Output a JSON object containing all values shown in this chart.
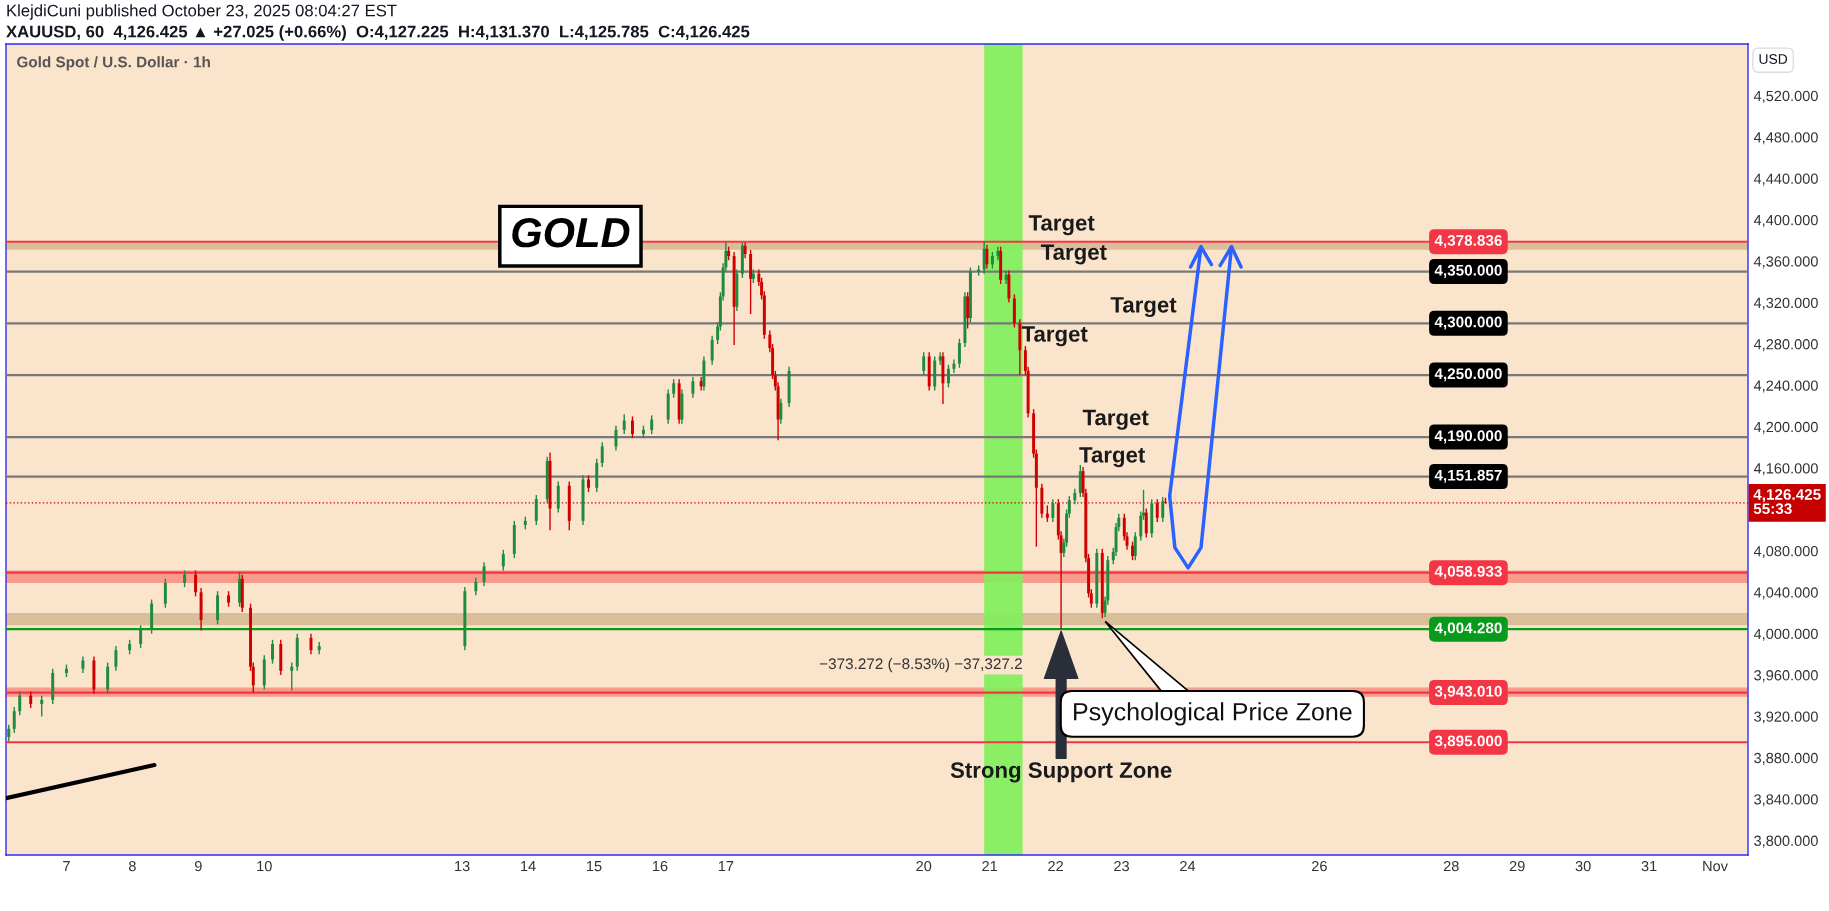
{
  "chart_data": {
    "type": "candlestick",
    "title": "Gold Spot / U.S. Dollar · 1h",
    "subtitle": "XAUUSD, 60  4,126.425 ▲ +27.025 (+0.66%)  O:4,127.225  H:4,131.370  L:4,125.785  C:4,126.425",
    "ylabel": "USD",
    "x": [
      "2025-10-06T03:00",
      "2025-10-06T05:00",
      "2025-10-06T07:00",
      "2025-10-06T11:00",
      "2025-10-06T15:00",
      "2025-10-06T19:00",
      "2025-10-07T00:00",
      "2025-10-07T06:00",
      "2025-10-07T10:00",
      "2025-10-07T15:00",
      "2025-10-07T18:00",
      "2025-10-07T23:00",
      "2025-10-08T03:00",
      "2025-10-08T07:00",
      "2025-10-08T12:00",
      "2025-10-08T19:00",
      "2025-10-08T23:00",
      "2025-10-09T01:00",
      "2025-10-09T07:00",
      "2025-10-09T11:00",
      "2025-10-09T15:00",
      "2025-10-09T16:00",
      "2025-10-09T19:00",
      "2025-10-09T20:00",
      "2025-10-10T00:00",
      "2025-10-10T03:00",
      "2025-10-10T06:00",
      "2025-10-10T10:00",
      "2025-10-10T12:00",
      "2025-10-10T17:00",
      "2025-10-10T20:00",
      "2025-10-13T01:00",
      "2025-10-13T05:00",
      "2025-10-13T08:00",
      "2025-10-13T15:00",
      "2025-10-13T19:00",
      "2025-10-13T23:00",
      "2025-10-14T03:00",
      "2025-10-14T07:00",
      "2025-10-14T08:00",
      "2025-10-14T11:00",
      "2025-10-14T15:00",
      "2025-10-14T20:00",
      "2025-10-14T22:00",
      "2025-10-15T01:00",
      "2025-10-15T03:00",
      "2025-10-15T08:00",
      "2025-10-15T11:00",
      "2025-10-15T14:00",
      "2025-10-15T18:00",
      "2025-10-15T21:00",
      "2025-10-16T03:00",
      "2025-10-16T05:00",
      "2025-10-16T07:00",
      "2025-10-16T08:00",
      "2025-10-16T12:00",
      "2025-10-16T15:00",
      "2025-10-16T16:00",
      "2025-10-16T19:00",
      "2025-10-16T21:00",
      "2025-10-16T22:00",
      "2025-10-16T23:00",
      "2025-10-17T00:00",
      "2025-10-17T01:00",
      "2025-10-17T03:00",
      "2025-10-17T04:00",
      "2025-10-17T06:00",
      "2025-10-17T07:00",
      "2025-10-17T09:00",
      "2025-10-17T10:00",
      "2025-10-17T12:00",
      "2025-10-17T13:00",
      "2025-10-17T14:00",
      "2025-10-17T16:00",
      "2025-10-17T17:00",
      "2025-10-17T18:00",
      "2025-10-17T19:00",
      "2025-10-17T20:00",
      "2025-10-17T23:00",
      "2025-10-20T00:00",
      "2025-10-20T02:00",
      "2025-10-20T04:00",
      "2025-10-20T06:00",
      "2025-10-20T07:00",
      "2025-10-20T09:00",
      "2025-10-20T11:00",
      "2025-10-20T13:00",
      "2025-10-20T15:00",
      "2025-10-20T16:00",
      "2025-10-20T17:00",
      "2025-10-20T20:00",
      "2025-10-20T22:00",
      "2025-10-20T23:00",
      "2025-10-21T01:00",
      "2025-10-21T03:00",
      "2025-10-21T04:00",
      "2025-10-21T06:00",
      "2025-10-21T07:00",
      "2025-10-21T09:00",
      "2025-10-21T11:00",
      "2025-10-21T13:00",
      "2025-10-21T14:00",
      "2025-10-21T16:00",
      "2025-10-21T17:00",
      "2025-10-21T19:00",
      "2025-10-21T21:00",
      "2025-10-21T23:00",
      "2025-10-22T01:00",
      "2025-10-22T02:00",
      "2025-10-22T03:00",
      "2025-10-22T04:00",
      "2025-10-22T05:00",
      "2025-10-22T07:00",
      "2025-10-22T09:00",
      "2025-10-22T10:00",
      "2025-10-22T11:00",
      "2025-10-22T12:00",
      "2025-10-22T13:00",
      "2025-10-22T15:00",
      "2025-10-22T17:00",
      "2025-10-22T18:00",
      "2025-10-22T19:00",
      "2025-10-22T21:00",
      "2025-10-22T22:00",
      "2025-10-22T23:00",
      "2025-10-23T01:00",
      "2025-10-23T02:00",
      "2025-10-23T04:00",
      "2025-10-23T05:00",
      "2025-10-23T07:00",
      "2025-10-23T08:00",
      "2025-10-23T09:00",
      "2025-10-23T11:00",
      "2025-10-23T13:00",
      "2025-10-23T15:00",
      "2025-10-23T16:00"
    ],
    "ohlc": [
      [
        3900,
        3912,
        3896,
        3908
      ],
      [
        3908,
        3929,
        3904,
        3925
      ],
      [
        3925,
        3944,
        3921,
        3940
      ],
      [
        3940,
        3944,
        3928,
        3932
      ],
      [
        3932,
        3940,
        3920,
        3936
      ],
      [
        3936,
        3966,
        3932,
        3962
      ],
      [
        3962,
        3970,
        3958,
        3966
      ],
      [
        3966,
        3978,
        3962,
        3974
      ],
      [
        3974,
        3978,
        3942,
        3946
      ],
      [
        3946,
        3972,
        3942,
        3968
      ],
      [
        3968,
        3988,
        3964,
        3984
      ],
      [
        3984,
        3994,
        3980,
        3990
      ],
      [
        3990,
        4008,
        3986,
        4004
      ],
      [
        4004,
        4033,
        4000,
        4029
      ],
      [
        4029,
        4053,
        4025,
        4049
      ],
      [
        4049,
        4061,
        4045,
        4057
      ],
      [
        4057,
        4061,
        4036,
        4040
      ],
      [
        4040,
        4044,
        4003,
        4013
      ],
      [
        4013,
        4041,
        4009,
        4037
      ],
      [
        4037,
        4041,
        4026,
        4030
      ],
      [
        4030,
        4060,
        4026,
        4053
      ],
      [
        4053,
        4057,
        4021,
        4025
      ],
      [
        4025,
        4029,
        3964,
        3968
      ],
      [
        3968,
        3972,
        3943,
        3950
      ],
      [
        3950,
        3979,
        3946,
        3975
      ],
      [
        3975,
        3994,
        3971,
        3990
      ],
      [
        3990,
        3994,
        3960,
        3964
      ],
      [
        3964,
        3972,
        3945,
        3968
      ],
      [
        3968,
        4000,
        3964,
        3996
      ],
      [
        3996,
        4000,
        3980,
        3984
      ],
      [
        3984,
        3992,
        3980,
        3988
      ],
      [
        3988,
        4045,
        3984,
        4041
      ],
      [
        4041,
        4054,
        4037,
        4050
      ],
      [
        4050,
        4069,
        4046,
        4065
      ],
      [
        4065,
        4081,
        4061,
        4077
      ],
      [
        4077,
        4109,
        4073,
        4105
      ],
      [
        4105,
        4113,
        4101,
        4109
      ],
      [
        4109,
        4134,
        4105,
        4130
      ],
      [
        4130,
        4171,
        4126,
        4167
      ],
      [
        4167,
        4175,
        4100,
        4121
      ],
      [
        4121,
        4147,
        4117,
        4143
      ],
      [
        4143,
        4147,
        4100,
        4109
      ],
      [
        4109,
        4153,
        4105,
        4149
      ],
      [
        4149,
        4153,
        4137,
        4141
      ],
      [
        4141,
        4169,
        4137,
        4165
      ],
      [
        4165,
        4185,
        4161,
        4181
      ],
      [
        4181,
        4201,
        4177,
        4197
      ],
      [
        4197,
        4212,
        4193,
        4206
      ],
      [
        4206,
        4210,
        4189,
        4193
      ],
      [
        4193,
        4201,
        4189,
        4197
      ],
      [
        4197,
        4211,
        4193,
        4207
      ],
      [
        4207,
        4236,
        4203,
        4232
      ],
      [
        4232,
        4246,
        4228,
        4242
      ],
      [
        4242,
        4246,
        4203,
        4207
      ],
      [
        4207,
        4236,
        4203,
        4232
      ],
      [
        4232,
        4248,
        4228,
        4244
      ],
      [
        4244,
        4248,
        4235,
        4239
      ],
      [
        4239,
        4268,
        4235,
        4264
      ],
      [
        4264,
        4288,
        4260,
        4284
      ],
      [
        4284,
        4301,
        4280,
        4297
      ],
      [
        4297,
        4330,
        4293,
        4326
      ],
      [
        4326,
        4358,
        4322,
        4354
      ],
      [
        4354,
        4378.836,
        4350,
        4370
      ],
      [
        4370,
        4374,
        4361,
        4365
      ],
      [
        4365,
        4369,
        4279,
        4316
      ],
      [
        4316,
        4352,
        4312,
        4348
      ],
      [
        4348,
        4378,
        4344,
        4375
      ],
      [
        4375,
        4378,
        4363,
        4367
      ],
      [
        4367,
        4371,
        4309,
        4343
      ],
      [
        4343,
        4352,
        4339,
        4348
      ],
      [
        4348,
        4352,
        4336,
        4340
      ],
      [
        4340,
        4344,
        4323,
        4327
      ],
      [
        4327,
        4331,
        4285,
        4289
      ],
      [
        4289,
        4293,
        4272,
        4276
      ],
      [
        4276,
        4280,
        4246,
        4250
      ],
      [
        4250,
        4254,
        4235,
        4239
      ],
      [
        4239,
        4243,
        4187,
        4207
      ],
      [
        4207,
        4227,
        4203,
        4223
      ],
      [
        4223,
        4258,
        4219,
        4254
      ],
      [
        4254,
        4272,
        4250,
        4268
      ],
      [
        4268,
        4272,
        4235,
        4239
      ],
      [
        4239,
        4268,
        4235,
        4264
      ],
      [
        4264,
        4272,
        4260,
        4268
      ],
      [
        4268,
        4272,
        4222,
        4242
      ],
      [
        4242,
        4260,
        4238,
        4256
      ],
      [
        4256,
        4265,
        4252,
        4261
      ],
      [
        4261,
        4285,
        4257,
        4281
      ],
      [
        4281,
        4330,
        4277,
        4326
      ],
      [
        4326,
        4330,
        4295,
        4305
      ],
      [
        4305,
        4354,
        4301,
        4350
      ],
      [
        4350,
        4356,
        4346,
        4352
      ],
      [
        4352,
        4378.836,
        4348,
        4372
      ],
      [
        4372,
        4376,
        4353,
        4357
      ],
      [
        4357,
        4369,
        4353,
        4365
      ],
      [
        4365,
        4374,
        4361,
        4370
      ],
      [
        4370,
        4374,
        4338,
        4342
      ],
      [
        4342,
        4351,
        4338,
        4347
      ],
      [
        4347,
        4351,
        4320,
        4324
      ],
      [
        4324,
        4328,
        4296,
        4300
      ],
      [
        4300,
        4304,
        4250,
        4274
      ],
      [
        4274,
        4278,
        4250,
        4254
      ],
      [
        4254,
        4258,
        4209,
        4213
      ],
      [
        4213,
        4217,
        4170,
        4174
      ],
      [
        4174,
        4178,
        4084,
        4141
      ],
      [
        4141,
        4145,
        4112,
        4116
      ],
      [
        4116,
        4124,
        4108,
        4112
      ],
      [
        4112,
        4130,
        4108,
        4126
      ],
      [
        4126,
        4130,
        4091,
        4095
      ],
      [
        4095,
        4099,
        4004.28,
        4078
      ],
      [
        4078,
        4092,
        4074,
        4088
      ],
      [
        4088,
        4120,
        4084,
        4116
      ],
      [
        4116,
        4133,
        4112,
        4129
      ],
      [
        4129,
        4140,
        4125,
        4136
      ],
      [
        4136,
        4163,
        4132,
        4157
      ],
      [
        4157,
        4161,
        4132,
        4136
      ],
      [
        4136,
        4140,
        4069,
        4073
      ],
      [
        4073,
        4077,
        4035,
        4039
      ],
      [
        4039,
        4043,
        4025,
        4029
      ],
      [
        4029,
        4082,
        4025,
        4078
      ],
      [
        4078,
        4082,
        4015,
        4020
      ],
      [
        4020,
        4036,
        4016,
        4032
      ],
      [
        4032,
        4075,
        4028,
        4071
      ],
      [
        4071,
        4083,
        4067,
        4079
      ],
      [
        4079,
        4107,
        4075,
        4103
      ],
      [
        4103,
        4116,
        4099,
        4112
      ],
      [
        4112,
        4116,
        4090,
        4094
      ],
      [
        4094,
        4098,
        4081,
        4085
      ],
      [
        4085,
        4089,
        4071,
        4075
      ],
      [
        4075,
        4098,
        4071,
        4094
      ],
      [
        4094,
        4118,
        4090,
        4114
      ],
      [
        4114,
        4139,
        4110,
        4117
      ],
      [
        4117,
        4121,
        4093,
        4097
      ],
      [
        4097,
        4130,
        4093,
        4126
      ],
      [
        4126,
        4130,
        4108,
        4112
      ],
      [
        4112,
        4132,
        4108,
        4128
      ],
      [
        4127.225,
        4131.37,
        4125.785,
        4126.425
      ]
    ],
    "series": [
      {
        "type": "line",
        "x": [
          "2025-10-06T02:00",
          "2025-10-08T08:00"
        ],
        "values": [
          3841,
          3873
        ],
        "color": "#000000"
      }
    ],
    "xlim": [
      "2025-10-06T02:00",
      "2025-11-01T12:00"
    ],
    "xticks": [
      {
        "value": "2025-10-07",
        "label": "7"
      },
      {
        "value": "2025-10-08",
        "label": "8"
      },
      {
        "value": "2025-10-09",
        "label": "9"
      },
      {
        "value": "2025-10-10",
        "label": "10"
      },
      {
        "value": "2025-10-13",
        "label": "13"
      },
      {
        "value": "2025-10-14",
        "label": "14"
      },
      {
        "value": "2025-10-15",
        "label": "15"
      },
      {
        "value": "2025-10-16",
        "label": "16"
      },
      {
        "value": "2025-10-17",
        "label": "17"
      },
      {
        "value": "2025-10-20",
        "label": "20"
      },
      {
        "value": "2025-10-21",
        "label": "21"
      },
      {
        "value": "2025-10-22",
        "label": "22"
      },
      {
        "value": "2025-10-23",
        "label": "23"
      },
      {
        "value": "2025-10-24",
        "label": "24"
      },
      {
        "value": "2025-10-26",
        "label": "26"
      },
      {
        "value": "2025-10-28",
        "label": "28"
      },
      {
        "value": "2025-10-29",
        "label": "29"
      },
      {
        "value": "2025-10-30",
        "label": "30"
      },
      {
        "value": "2025-10-31",
        "label": "31"
      },
      {
        "value": "2025-11-01",
        "label": "Nov"
      }
    ],
    "ylim": [
      3786,
      4570
    ],
    "yticks": [
      {
        "value": 3800,
        "label": "3,800.000"
      },
      {
        "value": 3840,
        "label": "3,840.000"
      },
      {
        "value": 3880,
        "label": "3,880.000"
      },
      {
        "value": 3920,
        "label": "3,920.000"
      },
      {
        "value": 3960,
        "label": "3,960.000"
      },
      {
        "value": 4000,
        "label": "4,000.000"
      },
      {
        "value": 4040,
        "label": "4,040.000"
      },
      {
        "value": 4080,
        "label": "4,080.000"
      },
      {
        "value": 4160,
        "label": "4,160.000"
      },
      {
        "value": 4200,
        "label": "4,200.000"
      },
      {
        "value": 4240,
        "label": "4,240.000"
      },
      {
        "value": 4280,
        "label": "4,280.000"
      },
      {
        "value": 4320,
        "label": "4,320.000"
      },
      {
        "value": 4360,
        "label": "4,360.000"
      },
      {
        "value": 4400,
        "label": "4,400.000"
      },
      {
        "value": 4440,
        "label": "4,440.000"
      },
      {
        "value": 4480,
        "label": "4,480.000"
      },
      {
        "value": 4520,
        "label": "4,520.000"
      }
    ],
    "ref_lines": [
      {
        "axis": "y",
        "value": 4378.836,
        "label": "4,378.836",
        "color": "#f23645"
      },
      {
        "axis": "y",
        "value": 4350,
        "label": "4,350.000",
        "color": "#787878"
      },
      {
        "axis": "y",
        "value": 4300,
        "label": "4,300.000",
        "color": "#787878"
      },
      {
        "axis": "y",
        "value": 4250,
        "label": "4,250.000",
        "color": "#787878"
      },
      {
        "axis": "y",
        "value": 4190,
        "label": "4,190.000",
        "color": "#787878"
      },
      {
        "axis": "y",
        "value": 4151.857,
        "label": "4,151.857",
        "color": "#787878"
      },
      {
        "axis": "y",
        "value": 4126.425,
        "label": "4,126.425\n55:33",
        "color": "#c40000",
        "line_style": "dotted"
      },
      {
        "axis": "y",
        "value": 4058.933,
        "label": "4,058.933",
        "color": "#f23645"
      },
      {
        "axis": "y",
        "value": 4004.28,
        "label": "4,004.280",
        "color": "#089a1a"
      },
      {
        "axis": "y",
        "value": 3943.01,
        "label": "3,943.010",
        "color": "#f23645"
      },
      {
        "axis": "y",
        "value": 3895,
        "label": "3,895.000",
        "color": "#f23645"
      }
    ],
    "bands": [
      {
        "axis": "y",
        "from": 4049,
        "to": 4061,
        "color": "#f7877c"
      },
      {
        "axis": "y",
        "from": 3939,
        "to": 3948,
        "color": "#f7877c"
      },
      {
        "axis": "y",
        "from": 4008,
        "to": 4020,
        "color": "#d2b48c"
      },
      {
        "axis": "y",
        "from": 4371,
        "to": 4378,
        "color": "#d2b48c"
      },
      {
        "axis": "x",
        "from": "2025-10-20T22:00",
        "to": "2025-10-21T12:00",
        "label": "−373.272 (−8.53%) −37,327.2",
        "color": "#7ef05a"
      }
    ],
    "annotations": [
      "KlejdiCuni published October 23, 2025 08:04:27 EST",
      "GOLD",
      "Strong Support Zone",
      "Psychological Price Zone",
      "Target",
      "Target",
      "Target",
      "Target",
      "Target",
      "Target"
    ]
  }
}
